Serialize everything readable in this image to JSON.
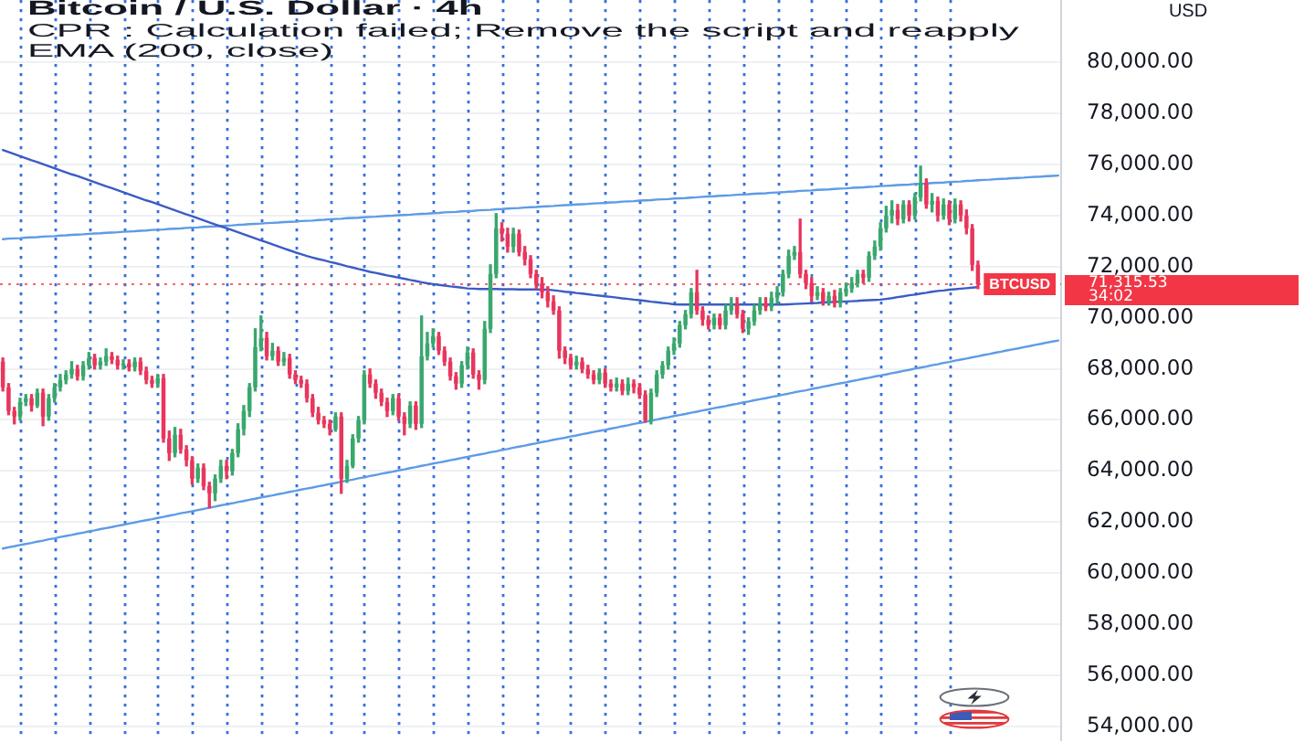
{
  "chart_data": {
    "type": "candlestick",
    "title": "Bitcoin / U.S. Dollar · 4h",
    "ylabel": "USD",
    "annotations": [
      "CPR : Calculation failed; Remove the script and reapply",
      "EMA (200, close)",
      "71,315.53",
      "34:02"
    ],
    "categories": [
      null,
      null,
      null,
      null,
      null,
      null,
      null,
      null,
      null,
      null,
      null,
      null,
      null,
      null,
      null,
      null,
      null,
      null,
      null,
      null,
      null,
      null,
      null,
      null,
      null,
      null,
      null,
      null,
      null,
      null,
      null,
      null,
      null,
      null,
      null,
      null,
      null,
      null,
      null,
      null,
      null,
      null,
      null,
      null,
      null,
      null,
      null,
      null,
      null,
      null,
      null,
      null,
      null,
      null,
      null,
      null,
      null,
      null,
      null,
      null,
      null,
      null,
      null,
      null,
      null,
      null,
      null,
      null,
      null,
      null,
      null,
      null,
      null,
      null,
      null,
      null,
      null,
      null,
      null,
      null,
      null,
      null,
      null,
      null,
      null,
      null,
      null,
      null,
      null,
      null,
      null,
      null,
      null,
      null,
      null,
      null,
      null,
      null,
      null,
      null,
      null,
      null,
      null,
      null,
      null,
      null,
      null,
      null,
      null,
      null,
      null,
      null,
      null,
      null,
      null,
      null,
      null,
      null,
      null,
      null,
      null,
      null,
      null,
      null,
      null,
      null,
      null,
      null,
      null,
      null,
      null,
      null,
      null,
      null,
      null,
      null,
      null,
      null,
      null,
      null,
      null,
      null,
      null,
      null,
      null,
      null,
      null,
      null,
      null,
      null,
      null,
      null,
      null,
      null,
      null,
      null,
      null,
      null,
      null,
      null,
      null,
      null,
      null,
      null,
      null,
      null,
      null,
      null,
      null,
      null,
      null,
      null,
      null,
      null,
      null,
      null,
      null,
      null,
      null,
      null,
      null,
      null,
      null,
      null,
      null
    ],
    "ohlc": [
      [
        68279,
        68422,
        67134,
        67277
      ],
      [
        67277,
        67420,
        66203,
        66346
      ],
      [
        66346,
        66489,
        65845,
        66131
      ],
      [
        66131,
        66847,
        65988,
        66704
      ],
      [
        66704,
        66990,
        66561,
        66847
      ],
      [
        66847,
        66990,
        66346,
        66561
      ],
      [
        66561,
        67205,
        66489,
        67062
      ],
      [
        67062,
        67205,
        65773,
        66131
      ],
      [
        66131,
        66990,
        65988,
        66847
      ],
      [
        66847,
        67420,
        66704,
        67277
      ],
      [
        67277,
        67778,
        67134,
        67563
      ],
      [
        67563,
        67921,
        67420,
        67778
      ],
      [
        67778,
        68279,
        67635,
        67993
      ],
      [
        67993,
        68136,
        67563,
        67706
      ],
      [
        67706,
        68279,
        67563,
        68136
      ],
      [
        68136,
        68637,
        67993,
        68422
      ],
      [
        68422,
        68566,
        67993,
        68136
      ],
      [
        68136,
        68422,
        67993,
        68279
      ],
      [
        68279,
        68780,
        68136,
        68494
      ],
      [
        68494,
        68637,
        68208,
        68351
      ],
      [
        68351,
        68494,
        67993,
        68136
      ],
      [
        68136,
        68351,
        67993,
        68208
      ],
      [
        68208,
        68351,
        67921,
        68064
      ],
      [
        68064,
        68422,
        67921,
        68279
      ],
      [
        68279,
        68422,
        67778,
        67921
      ],
      [
        67921,
        68064,
        67420,
        67563
      ],
      [
        67563,
        67706,
        67277,
        67420
      ],
      [
        67420,
        67778,
        67277,
        67635
      ],
      [
        67635,
        67778,
        65129,
        65272
      ],
      [
        65272,
        65558,
        64413,
        64699
      ],
      [
        64699,
        65702,
        64556,
        65415
      ],
      [
        65415,
        65630,
        64699,
        64842
      ],
      [
        64842,
        64986,
        64198,
        64413
      ],
      [
        64413,
        64556,
        63482,
        63697
      ],
      [
        63697,
        64270,
        63554,
        64126
      ],
      [
        64126,
        64270,
        63267,
        63410
      ],
      [
        63410,
        63554,
        62551,
        63124
      ],
      [
        63124,
        63840,
        62838,
        63697
      ],
      [
        63697,
        64413,
        63554,
        64198
      ],
      [
        64198,
        64413,
        63697,
        63983
      ],
      [
        63983,
        64842,
        63840,
        64699
      ],
      [
        64699,
        65845,
        64556,
        65630
      ],
      [
        65630,
        66561,
        65415,
        66346
      ],
      [
        66346,
        67420,
        66131,
        67277
      ],
      [
        67277,
        69568,
        67134,
        68852
      ],
      [
        68852,
        70070,
        68709,
        69210
      ],
      [
        69210,
        69425,
        68351,
        68494
      ],
      [
        68494,
        68995,
        68351,
        68709
      ],
      [
        68709,
        68852,
        68136,
        68279
      ],
      [
        68279,
        68637,
        68136,
        68422
      ],
      [
        68422,
        68566,
        67635,
        67778
      ],
      [
        67778,
        67921,
        67420,
        67563
      ],
      [
        67563,
        67706,
        67277,
        67420
      ],
      [
        67420,
        67563,
        66704,
        66847
      ],
      [
        66847,
        66990,
        66131,
        66274
      ],
      [
        66274,
        66489,
        65845,
        65988
      ],
      [
        65988,
        66131,
        65702,
        65845
      ],
      [
        65845,
        65988,
        65415,
        65630
      ],
      [
        65630,
        66274,
        65558,
        66131
      ],
      [
        66131,
        66274,
        63124,
        63697
      ],
      [
        63697,
        64413,
        63554,
        64198
      ],
      [
        64198,
        65415,
        64126,
        65272
      ],
      [
        65272,
        66131,
        65129,
        65988
      ],
      [
        65988,
        67921,
        65845,
        67778
      ],
      [
        67778,
        67993,
        67277,
        67420
      ],
      [
        67420,
        67563,
        66847,
        67062
      ],
      [
        67062,
        67205,
        66561,
        66704
      ],
      [
        66704,
        66847,
        66131,
        66346
      ],
      [
        66346,
        66990,
        66203,
        66847
      ],
      [
        66847,
        66990,
        65988,
        66131
      ],
      [
        66131,
        66274,
        65415,
        65845
      ],
      [
        65845,
        66704,
        65702,
        66561
      ],
      [
        66561,
        66704,
        65630,
        65845
      ],
      [
        65845,
        70070,
        65702,
        68494
      ],
      [
        68494,
        69425,
        68351,
        68995
      ],
      [
        68995,
        69568,
        68852,
        69282
      ],
      [
        69282,
        69425,
        68566,
        68709
      ],
      [
        68709,
        68852,
        68136,
        68279
      ],
      [
        68279,
        68422,
        67563,
        67706
      ],
      [
        67706,
        67850,
        67205,
        67420
      ],
      [
        67420,
        68279,
        67277,
        68136
      ],
      [
        68136,
        68852,
        67993,
        68637
      ],
      [
        68637,
        68780,
        67635,
        67778
      ],
      [
        67778,
        67921,
        67205,
        67563
      ],
      [
        67563,
        69854,
        67420,
        69568
      ],
      [
        69568,
        72074,
        69425,
        71716
      ],
      [
        71716,
        74079,
        71573,
        73506
      ],
      [
        73506,
        73721,
        73005,
        73291
      ],
      [
        73291,
        73506,
        72575,
        72790
      ],
      [
        72790,
        73506,
        72575,
        73291
      ],
      [
        73291,
        73434,
        72432,
        72575
      ],
      [
        72575,
        72790,
        72074,
        72289
      ],
      [
        72289,
        72432,
        71573,
        71716
      ],
      [
        71716,
        71859,
        71143,
        71358
      ],
      [
        71358,
        71573,
        70785,
        71000
      ],
      [
        71000,
        71215,
        70427,
        70642
      ],
      [
        70642,
        70857,
        70141,
        70284
      ],
      [
        70284,
        70427,
        68422,
        68709
      ],
      [
        68709,
        68852,
        68208,
        68422
      ],
      [
        68422,
        68566,
        67993,
        68136
      ],
      [
        68136,
        68494,
        67993,
        68279
      ],
      [
        68279,
        68422,
        67850,
        67993
      ],
      [
        67993,
        68136,
        67635,
        67778
      ],
      [
        67778,
        67921,
        67420,
        67563
      ],
      [
        67563,
        67993,
        67420,
        67850
      ],
      [
        67850,
        67993,
        67277,
        67420
      ],
      [
        67420,
        67563,
        67134,
        67277
      ],
      [
        67277,
        67635,
        67134,
        67420
      ],
      [
        67420,
        67563,
        66990,
        67134
      ],
      [
        67134,
        67635,
        66990,
        67420
      ],
      [
        67420,
        67563,
        67062,
        67277
      ],
      [
        67277,
        67420,
        66847,
        66990
      ],
      [
        66990,
        67134,
        65916,
        65988
      ],
      [
        65988,
        67205,
        65845,
        67062
      ],
      [
        67062,
        67921,
        66919,
        67778
      ],
      [
        67778,
        68279,
        67635,
        68136
      ],
      [
        68136,
        68852,
        67993,
        68709
      ],
      [
        68709,
        69210,
        68566,
        68995
      ],
      [
        68995,
        69854,
        68852,
        69711
      ],
      [
        69711,
        70284,
        69568,
        70141
      ],
      [
        70141,
        71143,
        69998,
        71000
      ],
      [
        71000,
        71859,
        70141,
        70284
      ],
      [
        70284,
        70427,
        69711,
        69926
      ],
      [
        69926,
        70070,
        69568,
        69711
      ],
      [
        69711,
        70141,
        69568,
        69998
      ],
      [
        69998,
        70141,
        69568,
        69711
      ],
      [
        69711,
        70499,
        69568,
        70284
      ],
      [
        70284,
        70785,
        70141,
        70570
      ],
      [
        70570,
        70785,
        69998,
        70141
      ],
      [
        70141,
        70284,
        69425,
        69568
      ],
      [
        69568,
        69998,
        69353,
        69854
      ],
      [
        69854,
        70499,
        69711,
        70284
      ],
      [
        70284,
        70785,
        70141,
        70570
      ],
      [
        70570,
        70785,
        70284,
        70427
      ],
      [
        70427,
        71000,
        70284,
        70785
      ],
      [
        70785,
        71215,
        70570,
        71000
      ],
      [
        71000,
        71859,
        70857,
        71716
      ],
      [
        71716,
        72647,
        71573,
        72432
      ],
      [
        72432,
        72790,
        72289,
        72575
      ],
      [
        72575,
        73864,
        71573,
        71716
      ],
      [
        71716,
        71859,
        71143,
        71358
      ],
      [
        71358,
        71573,
        70642,
        70857
      ],
      [
        70857,
        71215,
        70714,
        71000
      ],
      [
        71000,
        71143,
        70499,
        70642
      ],
      [
        70642,
        71000,
        70499,
        70857
      ],
      [
        70857,
        71072,
        70427,
        70570
      ],
      [
        70570,
        71143,
        70427,
        71000
      ],
      [
        71000,
        71358,
        70857,
        71143
      ],
      [
        71143,
        71573,
        71000,
        71358
      ],
      [
        71358,
        71859,
        71215,
        71716
      ],
      [
        71716,
        71859,
        71358,
        71573
      ],
      [
        71573,
        72575,
        71430,
        72432
      ],
      [
        72432,
        73005,
        72289,
        72790
      ],
      [
        72790,
        73721,
        72647,
        73506
      ],
      [
        73506,
        74365,
        73363,
        74007
      ],
      [
        74007,
        74580,
        73721,
        74222
      ],
      [
        74222,
        74437,
        73649,
        73864
      ],
      [
        73864,
        74580,
        73721,
        74437
      ],
      [
        74437,
        74580,
        73792,
        74007
      ],
      [
        74007,
        74866,
        73864,
        74723
      ],
      [
        74723,
        75940,
        74580,
        75296
      ],
      [
        75296,
        75439,
        74294,
        74437
      ],
      [
        74437,
        74866,
        74150,
        74580
      ],
      [
        74580,
        74723,
        73792,
        74007
      ],
      [
        74007,
        74652,
        73864,
        74437
      ],
      [
        74437,
        74580,
        73649,
        73864
      ],
      [
        73864,
        74652,
        73721,
        74437
      ],
      [
        74437,
        74580,
        73792,
        74007
      ],
      [
        74007,
        74222,
        73291,
        73506
      ],
      [
        73506,
        73649,
        71859,
        72074
      ],
      [
        72074,
        72217,
        71143,
        71315.53
      ],
      null,
      null,
      null,
      null,
      null,
      null,
      null,
      null,
      null,
      null,
      null,
      null,
      null,
      null
    ],
    "colors": [
      "#e8365d",
      "#e8365d",
      "#e8365d",
      "#3aa76d",
      "#3aa76d",
      "#e8365d",
      "#3aa76d",
      "#e8365d",
      "#3aa76d",
      "#3aa76d",
      "#3aa76d",
      "#3aa76d",
      "#3aa76d",
      "#e8365d",
      "#3aa76d",
      "#3aa76d",
      "#e8365d",
      "#3aa76d",
      "#3aa76d",
      "#e8365d",
      "#e8365d",
      "#3aa76d",
      "#e8365d",
      "#3aa76d",
      "#e8365d",
      "#e8365d",
      "#e8365d",
      "#3aa76d",
      "#e8365d",
      "#e8365d",
      "#3aa76d",
      "#e8365d",
      "#e8365d",
      "#e8365d",
      "#3aa76d",
      "#e8365d",
      "#e8365d",
      "#3aa76d",
      "#3aa76d",
      "#e8365d",
      "#3aa76d",
      "#3aa76d",
      "#3aa76d",
      "#3aa76d",
      "#3aa76d",
      "#3aa76d",
      "#e8365d",
      "#3aa76d",
      "#e8365d",
      "#3aa76d",
      "#e8365d",
      "#e8365d",
      "#e8365d",
      "#e8365d",
      "#e8365d",
      "#e8365d",
      "#e8365d",
      "#e8365d",
      "#3aa76d",
      "#e8365d",
      "#3aa76d",
      "#3aa76d",
      "#3aa76d",
      "#3aa76d",
      "#e8365d",
      "#e8365d",
      "#e8365d",
      "#e8365d",
      "#3aa76d",
      "#e8365d",
      "#e8365d",
      "#3aa76d",
      "#e8365d",
      "#3aa76d",
      "#3aa76d",
      "#3aa76d",
      "#e8365d",
      "#e8365d",
      "#e8365d",
      "#e8365d",
      "#3aa76d",
      "#3aa76d",
      "#e8365d",
      "#e8365d",
      "#3aa76d",
      "#3aa76d",
      "#3aa76d",
      "#e8365d",
      "#e8365d",
      "#3aa76d",
      "#e8365d",
      "#e8365d",
      "#e8365d",
      "#e8365d",
      "#e8365d",
      "#e8365d",
      "#e8365d",
      "#e8365d",
      "#e8365d",
      "#e8365d",
      "#3aa76d",
      "#e8365d",
      "#e8365d",
      "#e8365d",
      "#3aa76d",
      "#e8365d",
      "#e8365d",
      "#3aa76d",
      "#e8365d",
      "#3aa76d",
      "#e8365d",
      "#e8365d",
      "#e8365d",
      "#3aa76d",
      "#3aa76d",
      "#3aa76d",
      "#3aa76d",
      "#3aa76d",
      "#3aa76d",
      "#3aa76d",
      "#3aa76d",
      "#e8365d",
      "#e8365d",
      "#e8365d",
      "#3aa76d",
      "#e8365d",
      "#3aa76d",
      "#3aa76d",
      "#e8365d",
      "#e8365d",
      "#3aa76d",
      "#3aa76d",
      "#3aa76d",
      "#e8365d",
      "#3aa76d",
      "#3aa76d",
      "#3aa76d",
      "#3aa76d",
      "#3aa76d",
      "#e8365d",
      "#e8365d",
      "#e8365d",
      "#3aa76d",
      "#e8365d",
      "#3aa76d",
      "#e8365d",
      "#3aa76d",
      "#3aa76d",
      "#3aa76d",
      "#3aa76d",
      "#e8365d",
      "#3aa76d",
      "#3aa76d",
      "#3aa76d",
      "#3aa76d",
      "#3aa76d",
      "#e8365d",
      "#3aa76d",
      "#e8365d",
      "#3aa76d",
      "#3aa76d",
      "#e8365d",
      "#3aa76d",
      "#e8365d",
      "#3aa76d",
      "#e8365d",
      "#3aa76d",
      "#e8365d",
      "#e8365d",
      "#e8365d",
      "#e8365d",
      null,
      null,
      null,
      null,
      null,
      null,
      null,
      null,
      null,
      null,
      null,
      null,
      null,
      null
    ],
    "series": [
      {
        "type": "line",
        "color": "#3b5cc4",
        "values": [
          76570,
          76490,
          76410,
          76330,
          76250,
          76170,
          76100,
          76020,
          75940,
          75860,
          75780,
          75700,
          75620,
          75550,
          75470,
          75390,
          75310,
          75230,
          75150,
          75080,
          75000,
          74920,
          74840,
          74760,
          74680,
          74600,
          74530,
          74450,
          74370,
          74290,
          74210,
          74130,
          74050,
          73980,
          73900,
          73820,
          73740,
          73660,
          73580,
          73510,
          73430,
          73350,
          73270,
          73190,
          73110,
          73030,
          72960,
          72880,
          72800,
          72720,
          72640,
          72560,
          72490,
          72420,
          72360,
          72300,
          72250,
          72190,
          72140,
          72080,
          72020,
          71970,
          71910,
          71860,
          71800,
          71760,
          71710,
          71660,
          71620,
          71570,
          71530,
          71480,
          71440,
          71390,
          71350,
          71320,
          71290,
          71260,
          71230,
          71210,
          71180,
          71150,
          71140,
          71130,
          71130,
          71130,
          71130,
          71120,
          71120,
          71120,
          71110,
          71110,
          71110,
          71110,
          71100,
          71100,
          71080,
          71050,
          71020,
          71000,
          70970,
          70950,
          70920,
          70890,
          70870,
          70840,
          70820,
          70790,
          70760,
          70740,
          70710,
          70690,
          70660,
          70630,
          70610,
          70580,
          70560,
          70530,
          70520,
          70520,
          70520,
          70520,
          70520,
          70520,
          70520,
          70520,
          70520,
          70520,
          70520,
          70520,
          70520,
          70520,
          70520,
          70520,
          70520,
          70520,
          70520,
          70530,
          70540,
          70550,
          70560,
          70570,
          70580,
          70600,
          70610,
          70620,
          70630,
          70640,
          70650,
          70660,
          70680,
          70690,
          70700,
          70710,
          70740,
          70770,
          70810,
          70840,
          70880,
          70910,
          70950,
          70980,
          71020,
          71050,
          71070,
          71100,
          71120,
          71140,
          71160,
          71180,
          71200,
          null,
          null,
          null,
          null,
          null,
          null,
          null,
          null,
          null,
          null,
          null,
          null,
          null,
          null
        ]
      },
      {
        "type": "line",
        "color": "#5e9be6",
        "values": [
          73080,
          73100,
          73110,
          73120,
          73140,
          73150,
          73160,
          73180,
          73190,
          73200,
          73220,
          73230,
          73250,
          73260,
          73270,
          73290,
          73300,
          73310,
          73330,
          73340,
          73350,
          73370,
          73380,
          73390,
          73410,
          73420,
          73440,
          73450,
          73460,
          73480,
          73490,
          73500,
          73520,
          73530,
          73540,
          73560,
          73570,
          73580,
          73600,
          73610,
          73620,
          73640,
          73650,
          73670,
          73680,
          73690,
          73710,
          73720,
          73730,
          73750,
          73760,
          73770,
          73790,
          73800,
          73810,
          73830,
          73840,
          73860,
          73870,
          73880,
          73900,
          73910,
          73920,
          73940,
          73950,
          73960,
          73980,
          73990,
          74000,
          74020,
          74030,
          74040,
          74060,
          74070,
          74080,
          74100,
          74110,
          74130,
          74140,
          74150,
          74170,
          74180,
          74190,
          74210,
          74220,
          74230,
          74250,
          74260,
          74280,
          74290,
          74300,
          74320,
          74330,
          74340,
          74360,
          74370,
          74380,
          74400,
          74410,
          74420,
          74440,
          74450,
          74460,
          74480,
          74490,
          74500,
          74520,
          74530,
          74550,
          74560,
          74570,
          74590,
          74600,
          74610,
          74630,
          74640,
          74650,
          74670,
          74680,
          74690,
          74710,
          74720,
          74740,
          74750,
          74760,
          74780,
          74790,
          74800,
          74820,
          74830,
          74840,
          74860,
          74870,
          74880,
          74900,
          74910,
          74920,
          74940,
          74950,
          74970,
          74980,
          74990,
          75010,
          75020,
          75030,
          75050,
          75060,
          75070,
          75090,
          75100,
          75110,
          75130,
          75140,
          75160,
          75170,
          75180,
          75200,
          75210,
          75220,
          75240,
          75250,
          75260,
          75280,
          75290,
          75300,
          75320,
          75330,
          75340,
          75360,
          75370,
          75390,
          75400,
          75410,
          75430,
          75440,
          75450,
          75470,
          75480,
          75490,
          75510,
          75520,
          75530,
          75550,
          75560,
          75570
        ]
      },
      {
        "type": "line",
        "color": "#5e9be6",
        "values": [
          60960,
          61010,
          61050,
          61100,
          61140,
          61180,
          61230,
          61270,
          61320,
          61360,
          61410,
          61450,
          61490,
          61540,
          61580,
          61630,
          61670,
          61720,
          61760,
          61800,
          61850,
          61890,
          61940,
          61980,
          62030,
          62070,
          62110,
          62160,
          62200,
          62250,
          62290,
          62340,
          62380,
          62420,
          62470,
          62510,
          62560,
          62600,
          62650,
          62690,
          62730,
          62780,
          62820,
          62870,
          62910,
          62960,
          63000,
          63040,
          63090,
          63130,
          63180,
          63220,
          63270,
          63310,
          63350,
          63400,
          63440,
          63490,
          63530,
          63580,
          63620,
          63660,
          63710,
          63750,
          63800,
          63840,
          63890,
          63930,
          63970,
          64020,
          64060,
          64110,
          64150,
          64200,
          64240,
          64290,
          64330,
          64370,
          64420,
          64460,
          64510,
          64550,
          64600,
          64640,
          64680,
          64730,
          64770,
          64820,
          64860,
          64910,
          64950,
          64990,
          65040,
          65080,
          65130,
          65170,
          65220,
          65260,
          65300,
          65350,
          65390,
          65440,
          65480,
          65530,
          65570,
          65610,
          65660,
          65700,
          65750,
          65790,
          65840,
          65880,
          65920,
          65970,
          66010,
          66060,
          66100,
          66150,
          66190,
          66230,
          66280,
          66320,
          66370,
          66410,
          66460,
          66500,
          66540,
          66590,
          66630,
          66680,
          66720,
          66770,
          66810,
          66850,
          66900,
          66940,
          66990,
          67030,
          67080,
          67120,
          67160,
          67210,
          67250,
          67300,
          67340,
          67390,
          67430,
          67470,
          67520,
          67560,
          67610,
          67650,
          67700,
          67740,
          67780,
          67830,
          67870,
          67920,
          67960,
          68010,
          68050,
          68090,
          68140,
          68180,
          68230,
          68270,
          68320,
          68360,
          68400,
          68450,
          68490,
          68540,
          68580,
          68630,
          68670,
          68720,
          68760,
          68800,
          68850,
          68890,
          68940,
          68980,
          69030,
          69070,
          69110
        ]
      }
    ],
    "ylim": [
      53450,
      82450
    ],
    "yticks": [
      {
        "value": 54000,
        "label": "54,000.00"
      },
      {
        "value": 56000,
        "label": "56,000.00"
      },
      {
        "value": 58000,
        "label": "58,000.00"
      },
      {
        "value": 60000,
        "label": "60,000.00"
      },
      {
        "value": 62000,
        "label": "62,000.00"
      },
      {
        "value": 64000,
        "label": "64,000.00"
      },
      {
        "value": 66000,
        "label": "66,000.00"
      },
      {
        "value": 68000,
        "label": "68,000.00"
      },
      {
        "value": 70000,
        "label": "70,000.00"
      },
      {
        "value": 72000,
        "label": "72,000.00"
      },
      {
        "value": 74000,
        "label": "74,000.00"
      },
      {
        "value": 76000,
        "label": "76,000.00"
      },
      {
        "value": 78000,
        "label": "78,000.00"
      },
      {
        "value": 80000,
        "label": "80,000.00"
      }
    ],
    "ref_lines": [
      {
        "axis": "y",
        "value": 71315.53,
        "label": "BTCUSD",
        "color": "#f23645",
        "line_style": "dotted"
      }
    ],
    "grid": "y"
  }
}
